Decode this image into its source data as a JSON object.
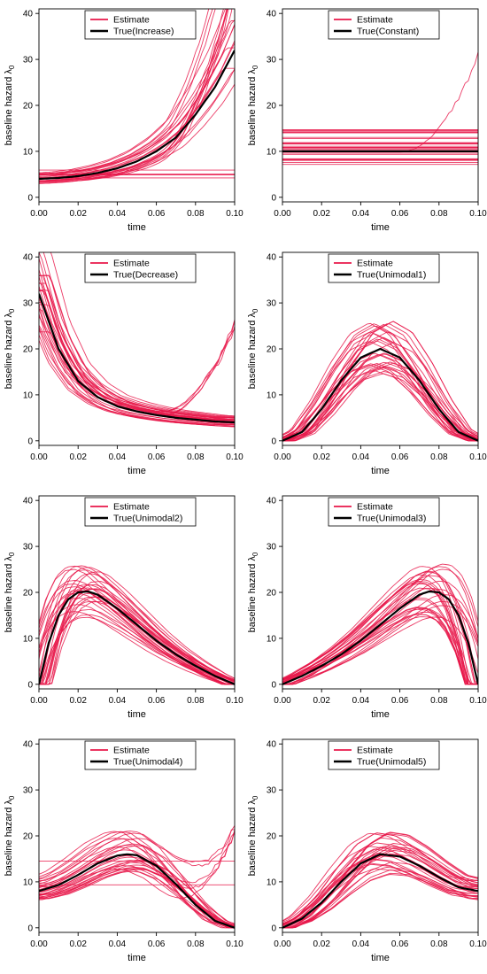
{
  "chart_data": [
    {
      "type": "line",
      "panel": "increase",
      "xlabel": "time",
      "ylabel": "baseline hazard",
      "ylabel_symbol": "λ",
      "ylabel_sub": "0",
      "xlim": [
        0,
        0.1
      ],
      "ylim": [
        -1,
        41
      ],
      "xticks": [
        "0.00",
        "0.02",
        "0.04",
        "0.06",
        "0.08",
        "0.10"
      ],
      "yticks": [
        "0",
        "10",
        "20",
        "30",
        "40"
      ],
      "legend_position": "top",
      "series": [
        {
          "name": "Estimate",
          "color": "#E8174A"
        },
        {
          "name": "True(Increase)",
          "color": "#000000"
        }
      ],
      "true_curve": {
        "x": [
          0,
          0.01,
          0.02,
          0.03,
          0.04,
          0.05,
          0.06,
          0.07,
          0.08,
          0.09,
          0.1
        ],
        "y": [
          4,
          4.2,
          4.6,
          5.3,
          6.3,
          7.8,
          10,
          13,
          18,
          24,
          32
        ]
      }
    },
    {
      "type": "line",
      "panel": "constant",
      "xlabel": "time",
      "ylabel": "baseline hazard",
      "ylabel_symbol": "λ",
      "ylabel_sub": "0",
      "xlim": [
        0,
        0.1
      ],
      "ylim": [
        -1,
        41
      ],
      "xticks": [
        "0.00",
        "0.02",
        "0.04",
        "0.06",
        "0.08",
        "0.10"
      ],
      "yticks": [
        "0",
        "10",
        "20",
        "30",
        "40"
      ],
      "legend_position": "top",
      "series": [
        {
          "name": "Estimate",
          "color": "#E8174A"
        },
        {
          "name": "True(Constant)",
          "color": "#000000"
        }
      ],
      "true_curve": {
        "x": [
          0,
          0.1
        ],
        "y": [
          10,
          10
        ]
      }
    },
    {
      "type": "line",
      "panel": "decrease",
      "xlabel": "time",
      "ylabel": "baseline hazard",
      "ylabel_symbol": "λ",
      "ylabel_sub": "0",
      "xlim": [
        0,
        0.1
      ],
      "ylim": [
        -1,
        41
      ],
      "xticks": [
        "0.00",
        "0.02",
        "0.04",
        "0.06",
        "0.08",
        "0.10"
      ],
      "yticks": [
        "0",
        "10",
        "20",
        "30",
        "40"
      ],
      "legend_position": "top",
      "series": [
        {
          "name": "Estimate",
          "color": "#E8174A"
        },
        {
          "name": "True(Decrease)",
          "color": "#000000"
        }
      ],
      "true_curve": {
        "x": [
          0,
          0.01,
          0.02,
          0.03,
          0.04,
          0.05,
          0.06,
          0.07,
          0.08,
          0.09,
          0.1
        ],
        "y": [
          32,
          20,
          13,
          9.5,
          7.5,
          6.4,
          5.6,
          5,
          4.6,
          4.2,
          4
        ]
      }
    },
    {
      "type": "line",
      "panel": "unimodal1",
      "xlabel": "time",
      "ylabel": "baseline hazard",
      "ylabel_symbol": "λ",
      "ylabel_sub": "0",
      "xlim": [
        0,
        0.1
      ],
      "ylim": [
        -1,
        41
      ],
      "xticks": [
        "0.00",
        "0.02",
        "0.04",
        "0.06",
        "0.08",
        "0.10"
      ],
      "yticks": [
        "0",
        "10",
        "20",
        "30",
        "40"
      ],
      "legend_position": "top",
      "series": [
        {
          "name": "Estimate",
          "color": "#E8174A"
        },
        {
          "name": "True(Unimodal1)",
          "color": "#000000"
        }
      ],
      "true_curve": {
        "x": [
          0,
          0.01,
          0.02,
          0.03,
          0.04,
          0.05,
          0.06,
          0.07,
          0.08,
          0.09,
          0.1
        ],
        "y": [
          0,
          1.9,
          6.9,
          13.1,
          18.1,
          20,
          18.1,
          13.1,
          6.9,
          1.9,
          0
        ]
      }
    },
    {
      "type": "line",
      "panel": "unimodal2",
      "xlabel": "time",
      "ylabel": "baseline hazard",
      "ylabel_symbol": "λ",
      "ylabel_sub": "0",
      "xlim": [
        0,
        0.1
      ],
      "ylim": [
        -1,
        41
      ],
      "xticks": [
        "0.00",
        "0.02",
        "0.04",
        "0.06",
        "0.08",
        "0.10"
      ],
      "yticks": [
        "0",
        "10",
        "20",
        "30",
        "40"
      ],
      "legend_position": "top",
      "series": [
        {
          "name": "Estimate",
          "color": "#E8174A"
        },
        {
          "name": "True(Unimodal2)",
          "color": "#000000"
        }
      ],
      "true_curve": {
        "x": [
          0,
          0.005,
          0.01,
          0.015,
          0.02,
          0.025,
          0.03,
          0.04,
          0.05,
          0.06,
          0.07,
          0.08,
          0.09,
          0.1
        ],
        "y": [
          0,
          9,
          15,
          18.5,
          20,
          20.2,
          19.5,
          16.5,
          13,
          9.5,
          6.5,
          4,
          1.8,
          0
        ]
      }
    },
    {
      "type": "line",
      "panel": "unimodal3",
      "xlabel": "time",
      "ylabel": "baseline hazard",
      "ylabel_symbol": "λ",
      "ylabel_sub": "0",
      "xlim": [
        0,
        0.1
      ],
      "ylim": [
        -1,
        41
      ],
      "xticks": [
        "0.00",
        "0.02",
        "0.04",
        "0.06",
        "0.08",
        "0.10"
      ],
      "yticks": [
        "0",
        "10",
        "20",
        "30",
        "40"
      ],
      "legend_position": "top",
      "series": [
        {
          "name": "Estimate",
          "color": "#E8174A"
        },
        {
          "name": "True(Unimodal3)",
          "color": "#000000"
        }
      ],
      "true_curve": {
        "x": [
          0,
          0.01,
          0.02,
          0.03,
          0.04,
          0.05,
          0.06,
          0.07,
          0.075,
          0.08,
          0.085,
          0.09,
          0.095,
          0.1
        ],
        "y": [
          0,
          1.8,
          4,
          6.5,
          9.5,
          13,
          16.5,
          19.5,
          20.2,
          20,
          18.5,
          15,
          9,
          0
        ]
      }
    },
    {
      "type": "line",
      "panel": "unimodal4",
      "xlabel": "time",
      "ylabel": "baseline hazard",
      "ylabel_symbol": "λ",
      "ylabel_sub": "0",
      "xlim": [
        0,
        0.1
      ],
      "ylim": [
        -1,
        41
      ],
      "xticks": [
        "0.00",
        "0.02",
        "0.04",
        "0.06",
        "0.08",
        "0.10"
      ],
      "yticks": [
        "0",
        "10",
        "20",
        "30",
        "40"
      ],
      "legend_position": "top",
      "series": [
        {
          "name": "Estimate",
          "color": "#E8174A"
        },
        {
          "name": "True(Unimodal4)",
          "color": "#000000"
        }
      ],
      "true_curve": {
        "x": [
          0,
          0.01,
          0.02,
          0.03,
          0.04,
          0.045,
          0.05,
          0.06,
          0.07,
          0.08,
          0.09,
          0.1
        ],
        "y": [
          8,
          9.3,
          11.5,
          14,
          15.7,
          16,
          15.8,
          13.5,
          9.5,
          5,
          1.5,
          0
        ]
      }
    },
    {
      "type": "line",
      "panel": "unimodal5",
      "xlabel": "time",
      "ylabel": "baseline hazard",
      "ylabel_symbol": "λ",
      "ylabel_sub": "0",
      "xlim": [
        0,
        0.1
      ],
      "ylim": [
        -1,
        41
      ],
      "xticks": [
        "0.00",
        "0.02",
        "0.04",
        "0.06",
        "0.08",
        "0.10"
      ],
      "yticks": [
        "0",
        "10",
        "20",
        "30",
        "40"
      ],
      "legend_position": "top",
      "series": [
        {
          "name": "Estimate",
          "color": "#E8174A"
        },
        {
          "name": "True(Unimodal5)",
          "color": "#000000"
        }
      ],
      "true_curve": {
        "x": [
          0,
          0.01,
          0.02,
          0.03,
          0.04,
          0.05,
          0.06,
          0.07,
          0.08,
          0.09,
          0.1
        ],
        "y": [
          0,
          2,
          5.5,
          10,
          14,
          16,
          15.5,
          13.5,
          11,
          8.8,
          8
        ]
      }
    }
  ]
}
